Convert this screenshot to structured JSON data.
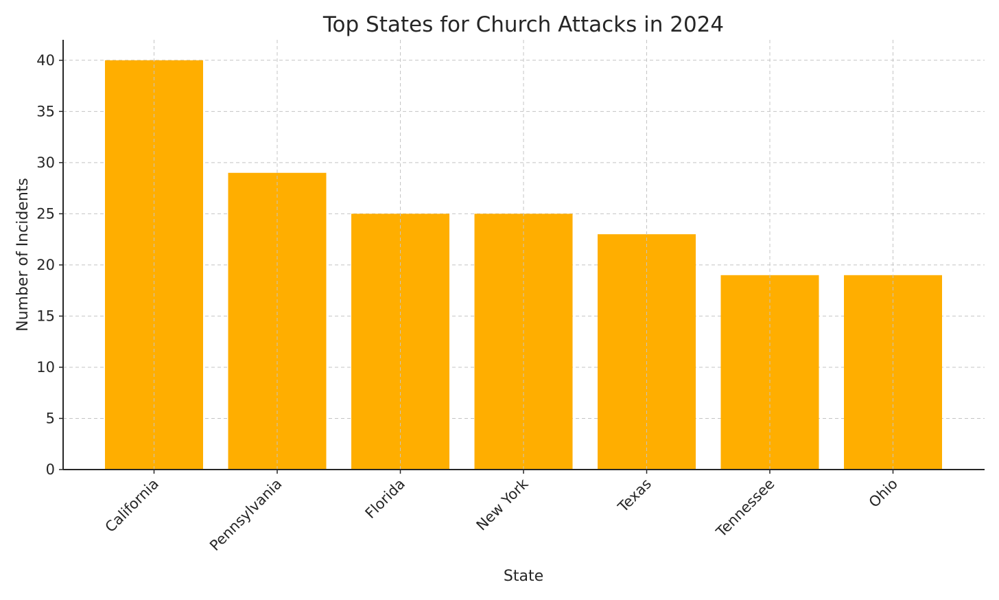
{
  "chart_data": {
    "type": "bar",
    "title": "Top States for Church Attacks in 2024",
    "xlabel": "State",
    "ylabel": "Number of Incidents",
    "categories": [
      "California",
      "Pennsylvania",
      "Florida",
      "New York",
      "Texas",
      "Tennessee",
      "Ohio"
    ],
    "values": [
      40,
      29,
      25,
      25,
      23,
      19,
      19
    ],
    "ylim": [
      0,
      42
    ],
    "yticks": [
      0,
      5,
      10,
      15,
      20,
      25,
      30,
      35,
      40
    ],
    "grid": true,
    "bar_color": "#ffae00",
    "legend": "none"
  }
}
